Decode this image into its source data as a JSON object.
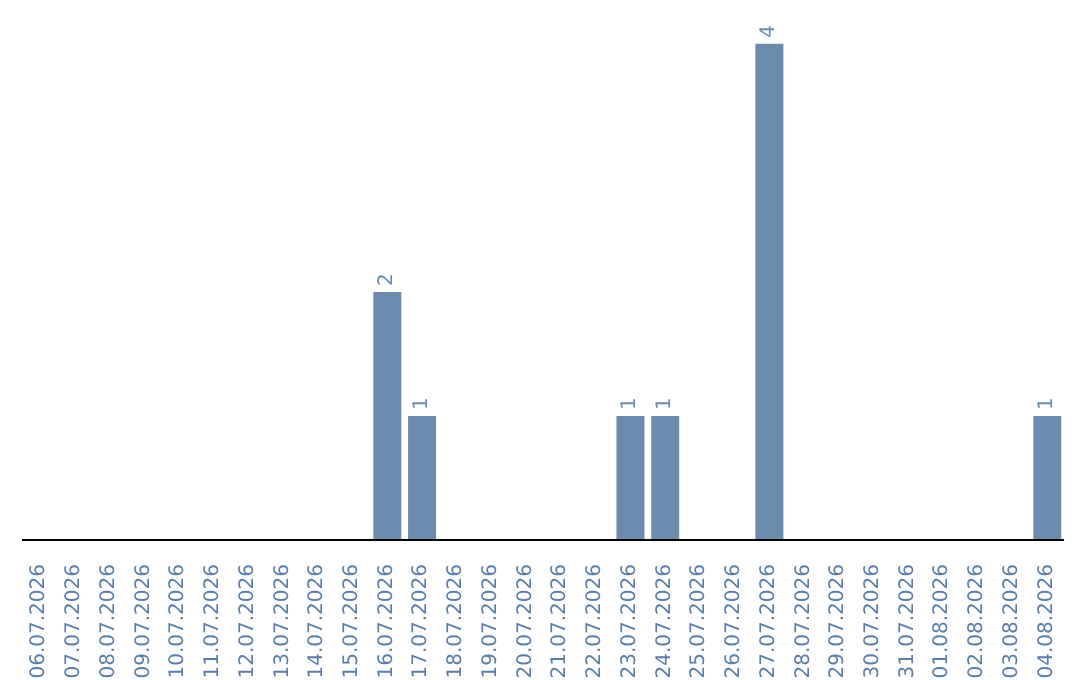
{
  "chart_data": {
    "type": "bar",
    "categories": [
      "06.07.2026",
      "07.07.2026",
      "08.07.2026",
      "09.07.2026",
      "10.07.2026",
      "11.07.2026",
      "12.07.2026",
      "13.07.2026",
      "14.07.2026",
      "15.07.2026",
      "16.07.2026",
      "17.07.2026",
      "18.07.2026",
      "19.07.2026",
      "20.07.2026",
      "21.07.2026",
      "22.07.2026",
      "23.07.2026",
      "24.07.2026",
      "25.07.2026",
      "26.07.2026",
      "27.07.2026",
      "28.07.2026",
      "29.07.2026",
      "30.07.2026",
      "31.07.2026",
      "01.08.2026",
      "02.08.2026",
      "03.08.2026",
      "04.08.2026"
    ],
    "values": [
      0,
      0,
      0,
      0,
      0,
      0,
      0,
      0,
      0,
      0,
      2,
      1,
      0,
      0,
      0,
      0,
      0,
      1,
      1,
      0,
      0,
      4,
      0,
      0,
      0,
      0,
      0,
      0,
      0,
      1
    ],
    "value_labels": [
      null,
      null,
      null,
      null,
      null,
      null,
      null,
      null,
      null,
      null,
      "2",
      "1",
      null,
      null,
      null,
      null,
      null,
      "1",
      "1",
      null,
      null,
      "4",
      null,
      null,
      null,
      null,
      null,
      null,
      null,
      "1"
    ],
    "color": "#6b8cae",
    "grid": false,
    "legend": false
  }
}
